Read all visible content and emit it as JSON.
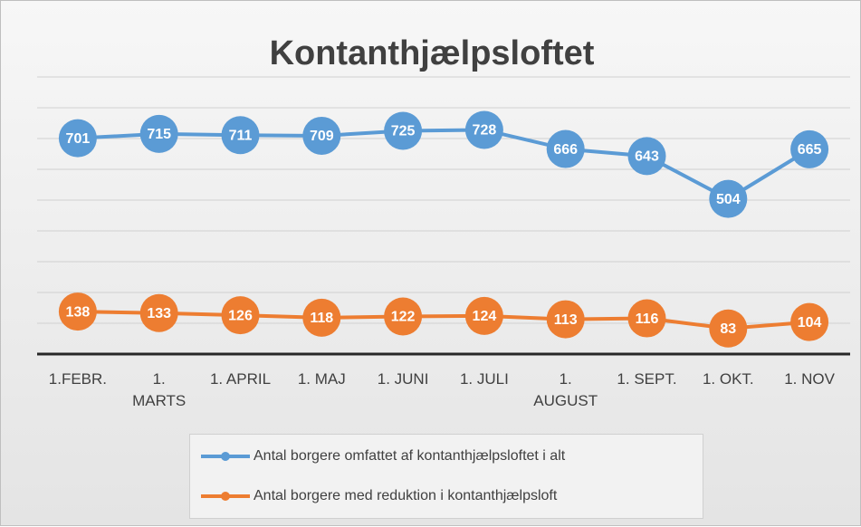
{
  "chart_data": {
    "type": "line",
    "title": "Kontanthjælpsloftet",
    "categories": [
      "1.FEBR.",
      "1.\nMARTS",
      "1. APRIL",
      "1. MAJ",
      "1. JUNI",
      "1. JULI",
      "1.\nAUGUST",
      "1. SEPT.",
      "1. OKT.",
      "1. NOV"
    ],
    "series": [
      {
        "name": "Antal borgere omfattet af kontanthjælpsloftet i alt",
        "color": "#5b9bd5",
        "values": [
          701,
          715,
          711,
          709,
          725,
          728,
          666,
          643,
          504,
          665
        ]
      },
      {
        "name": "Antal borgere med reduktion i kontanthjælpsloft",
        "color": "#ed7d31",
        "values": [
          138,
          133,
          126,
          118,
          122,
          124,
          113,
          116,
          83,
          104
        ]
      }
    ],
    "ylim": [
      0,
      900
    ],
    "yticks": [
      0,
      100,
      200,
      300,
      400,
      500,
      600,
      700,
      800,
      900
    ],
    "grid": true,
    "legend": "bottom"
  }
}
